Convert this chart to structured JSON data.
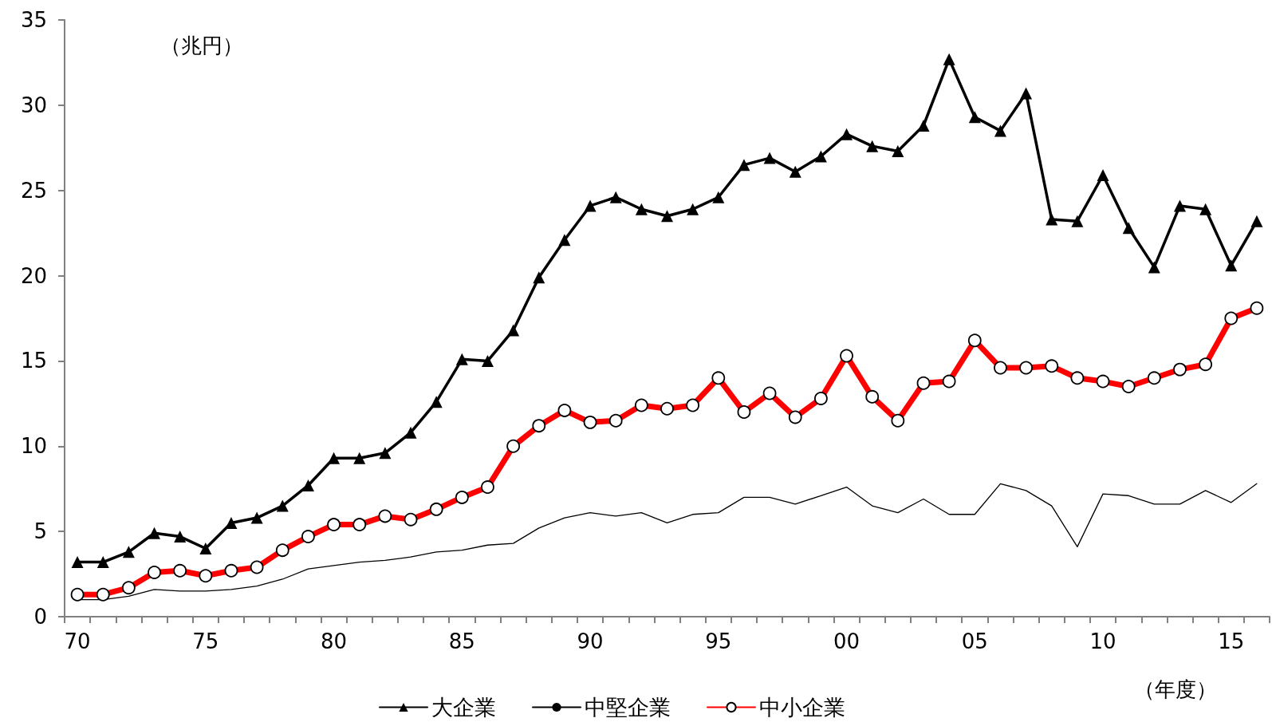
{
  "chart_data": {
    "type": "line",
    "ylabel": "（兆円）",
    "xlabel": "（年度）",
    "categories": [
      "70",
      null,
      null,
      null,
      null,
      "75",
      null,
      null,
      null,
      null,
      "80",
      null,
      null,
      null,
      null,
      "85",
      null,
      null,
      null,
      null,
      "90",
      null,
      null,
      null,
      null,
      "95",
      null,
      null,
      null,
      null,
      "00",
      null,
      null,
      null,
      null,
      "05",
      null,
      null,
      null,
      null,
      "10",
      null,
      null,
      null,
      null,
      "15",
      null
    ],
    "series": [
      {
        "name": "大企業",
        "color": "#000000",
        "marker": "triangle",
        "values": [
          3.2,
          3.2,
          3.8,
          4.9,
          4.7,
          4.0,
          5.5,
          5.8,
          6.5,
          7.7,
          9.3,
          9.3,
          9.6,
          10.8,
          12.6,
          15.1,
          15.0,
          16.8,
          19.9,
          22.1,
          24.1,
          24.6,
          23.9,
          23.5,
          23.9,
          24.6,
          26.5,
          26.9,
          26.1,
          27.0,
          28.3,
          27.6,
          27.3,
          28.8,
          32.7,
          29.3,
          28.5,
          30.7,
          23.3,
          23.2,
          25.9,
          22.8,
          20.5,
          24.1,
          23.9,
          20.6,
          23.2
        ]
      },
      {
        "name": "中堅企業",
        "color": "#000000",
        "marker": "none",
        "values": [
          1.0,
          1.0,
          1.2,
          1.6,
          1.5,
          1.5,
          1.6,
          1.8,
          2.2,
          2.8,
          3.0,
          3.2,
          3.3,
          3.5,
          3.8,
          3.9,
          4.2,
          4.3,
          5.2,
          5.8,
          6.1,
          5.9,
          6.1,
          5.5,
          6.0,
          6.1,
          7.0,
          7.0,
          6.6,
          7.1,
          7.6,
          6.5,
          6.1,
          6.9,
          6.0,
          6.0,
          7.8,
          7.4,
          6.5,
          4.1,
          7.2,
          7.1,
          6.6,
          6.6,
          7.4,
          6.7,
          7.8
        ]
      },
      {
        "name": "中小企業",
        "color": "#ff0000",
        "marker": "circle",
        "values": [
          1.3,
          1.3,
          1.7,
          2.6,
          2.7,
          2.4,
          2.7,
          2.9,
          3.9,
          4.7,
          5.4,
          5.4,
          5.9,
          5.7,
          6.3,
          7.0,
          7.6,
          10.0,
          11.2,
          12.1,
          11.4,
          11.5,
          12.4,
          12.2,
          12.4,
          14.0,
          12.0,
          13.1,
          11.7,
          12.8,
          15.3,
          12.9,
          11.5,
          13.7,
          13.8,
          16.2,
          14.6,
          14.6,
          14.7,
          14.0,
          13.8,
          13.5,
          14.0,
          14.5,
          14.8,
          17.5,
          18.1
        ]
      }
    ],
    "ylim": [
      0,
      35
    ],
    "yticks": [
      0,
      5,
      10,
      15,
      20,
      25,
      30,
      35
    ],
    "grid": false,
    "legend": "bottom"
  }
}
